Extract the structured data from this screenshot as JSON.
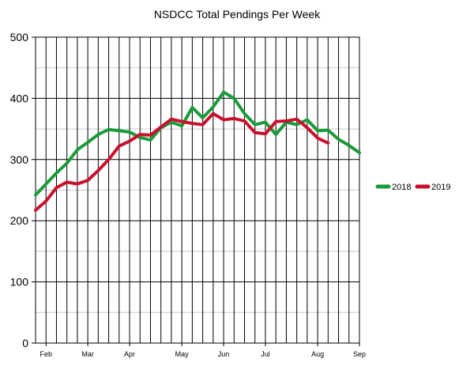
{
  "chart_data": {
    "type": "line",
    "title": "NSDCC Total Pendings Per Week",
    "xlabel": "",
    "ylabel": "",
    "ylim": [
      0,
      500
    ],
    "yticks": [
      0,
      100,
      200,
      300,
      400,
      500
    ],
    "xlim": [
      0,
      31
    ],
    "x_ticks": [
      {
        "label": "Feb",
        "x": 1
      },
      {
        "label": "Mar",
        "x": 5
      },
      {
        "label": "Apr",
        "x": 9
      },
      {
        "label": "May",
        "x": 14
      },
      {
        "label": "Jun",
        "x": 18
      },
      {
        "label": "Jul",
        "x": 22
      },
      {
        "label": "Aug",
        "x": 27
      },
      {
        "label": "Sep",
        "x": 31
      }
    ],
    "grid": true,
    "legend": "right",
    "series": [
      {
        "name": "2018",
        "color": "#1a9a3a",
        "values": [
          242,
          260,
          278,
          294,
          316,
          328,
          341,
          349,
          347,
          345,
          336,
          332,
          352,
          361,
          355,
          385,
          368,
          386,
          410,
          400,
          375,
          357,
          361,
          341,
          361,
          357,
          365,
          347,
          348,
          333,
          323,
          311
        ]
      },
      {
        "name": "2019",
        "color": "#c8102e",
        "values": [
          217,
          232,
          254,
          263,
          260,
          266,
          282,
          300,
          322,
          330,
          341,
          340,
          353,
          366,
          362,
          359,
          357,
          375,
          365,
          367,
          363,
          344,
          342,
          362,
          363,
          366,
          352,
          335,
          327
        ]
      }
    ]
  }
}
